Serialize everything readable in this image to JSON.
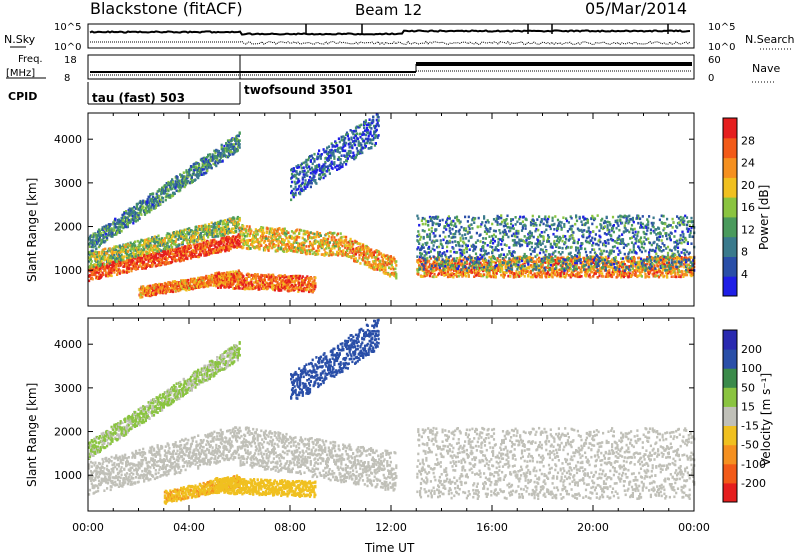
{
  "header": {
    "station": "Blackstone (fitACF)",
    "beam": "Beam 12",
    "date": "05/Mar/2014"
  },
  "strip_labels": {
    "nsky": "N.Sky",
    "nsearch": "N.Search",
    "freq_line1": "Freq.",
    "freq_line2": "[MHz]",
    "nave": "Nave",
    "cpid": "CPID"
  },
  "strip_ticks": {
    "noise_left": [
      "10^5",
      "10^0"
    ],
    "noise_right": [
      "10^5",
      "10^0"
    ],
    "freq_left": [
      "18",
      "8"
    ],
    "nave_right": [
      "60",
      "0"
    ]
  },
  "cpid": [
    {
      "label": "tau (fast) 503",
      "start_hour": 0
    },
    {
      "label": "twofsound 3501",
      "start_hour": 6
    }
  ],
  "colors": {
    "power": [
      "#1f1fe6",
      "#2a4fa8",
      "#3a7a8c",
      "#4a9a5c",
      "#8ac440",
      "#f0c020",
      "#f59020",
      "#f25a18",
      "#e51e1e"
    ],
    "velocity": [
      "#e51e1e",
      "#f25a18",
      "#f59020",
      "#f0c020",
      "#c0c0b8",
      "#8ac440",
      "#3a8a4a",
      "#2a4fa8",
      "#2a2ab0"
    ]
  },
  "chart_data": [
    {
      "type": "heatmap",
      "title": "Power",
      "xlabel": "",
      "ylabel": "Slant Range [km]",
      "x_range_hours": [
        0,
        24
      ],
      "y_range_km": [
        180,
        4600
      ],
      "y_ticks": [
        1000,
        2000,
        3000,
        4000
      ],
      "colorbar": {
        "label": "Power [dB]",
        "range": [
          0,
          32
        ],
        "ticks": [
          "4",
          "8",
          "12",
          "16",
          "20",
          "24",
          "28"
        ]
      },
      "series": [
        {
          "start": 0,
          "end": 6,
          "r0": 950,
          "r1": 1700,
          "w": 180,
          "value": 28
        },
        {
          "start": 0,
          "end": 6,
          "r0": 1250,
          "r1": 2100,
          "w": 200,
          "value": 16
        },
        {
          "start": 0,
          "end": 6,
          "r0": 1600,
          "r1": 4000,
          "w": 220,
          "value": 10
        },
        {
          "start": 2,
          "end": 6,
          "r0": 520,
          "r1": 900,
          "w": 140,
          "value": 24
        },
        {
          "start": 6,
          "end": 10,
          "r0": 1800,
          "r1": 1600,
          "w": 300,
          "value": 20
        },
        {
          "start": 10,
          "end": 12.2,
          "r0": 1600,
          "r1": 1050,
          "w": 260,
          "value": 22
        },
        {
          "start": 5,
          "end": 9,
          "r0": 800,
          "r1": 700,
          "w": 200,
          "value": 26
        },
        {
          "start": 8,
          "end": 11.5,
          "r0": 3000,
          "r1": 4300,
          "w": 400,
          "value": 6
        },
        {
          "start": 13,
          "end": 24,
          "r0": 1100,
          "r1": 1100,
          "w": 260,
          "value": 24
        },
        {
          "start": 13,
          "end": 24,
          "r0": 1650,
          "r1": 1650,
          "w": 700,
          "value": 9
        }
      ]
    },
    {
      "type": "heatmap",
      "title": "Velocity",
      "xlabel": "Time UT",
      "ylabel": "Slant Range [km]",
      "x_range_hours": [
        0,
        24
      ],
      "x_ticks": [
        "00:00",
        "04:00",
        "08:00",
        "12:00",
        "16:00",
        "20:00",
        "00:00"
      ],
      "y_range_km": [
        180,
        4600
      ],
      "y_ticks": [
        1000,
        2000,
        3000,
        4000
      ],
      "colorbar": {
        "label": "Velocity [m s⁻¹]",
        "range": [
          -250,
          250
        ],
        "ticks": [
          "200",
          "100",
          "50",
          "15",
          "-15",
          "-50",
          "-100",
          "-200"
        ]
      },
      "series": [
        {
          "start": 0,
          "end": 6,
          "r0": 950,
          "r1": 1800,
          "w": 420,
          "value": 0
        },
        {
          "start": 0,
          "end": 6,
          "r0": 1600,
          "r1": 3900,
          "w": 220,
          "value": 30
        },
        {
          "start": 3,
          "end": 6,
          "r0": 520,
          "r1": 900,
          "w": 160,
          "value": -80
        },
        {
          "start": 6,
          "end": 12.2,
          "r0": 1700,
          "r1": 1100,
          "w": 500,
          "value": 10
        },
        {
          "start": 5,
          "end": 9,
          "r0": 800,
          "r1": 700,
          "w": 200,
          "value": -60
        },
        {
          "start": 8,
          "end": 11.5,
          "r0": 3000,
          "r1": 4300,
          "w": 400,
          "value": 150
        },
        {
          "start": 13,
          "end": 24,
          "r0": 1300,
          "r1": 1300,
          "w": 900,
          "value": 0
        }
      ]
    }
  ]
}
